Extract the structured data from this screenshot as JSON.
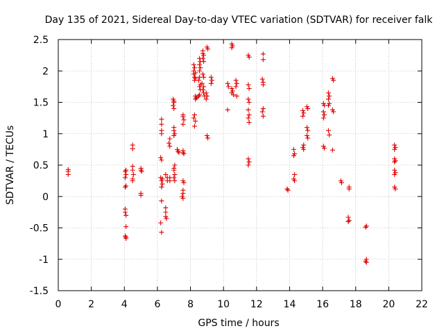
{
  "chart_data": {
    "type": "scatter",
    "title": "Day 135 of 2021, Sidereal Day-to-day VTEC variation (SDTVAR) for receiver falk",
    "xlabel": "GPS time / hours",
    "ylabel": "SDTVAR / TECUs",
    "xlim": [
      0,
      22
    ],
    "ylim": [
      -1.5,
      2.5
    ],
    "xticks": [
      0,
      2,
      4,
      6,
      8,
      10,
      12,
      14,
      16,
      18,
      20,
      22
    ],
    "yticks": [
      -1.5,
      -1,
      -0.5,
      0,
      0.5,
      1,
      1.5,
      2,
      2.5
    ],
    "xtick_labels": [
      "0",
      "2",
      "4",
      "6",
      "8",
      "10",
      "12",
      "14",
      "16",
      "18",
      "20",
      "22"
    ],
    "ytick_labels": [
      "-1.5",
      "-1",
      "-0.5",
      "0",
      "0.5",
      "1",
      "1.5",
      "2",
      "2.5"
    ],
    "grid": true,
    "marker": "plus",
    "color": "#e00000",
    "series": [
      {
        "name": "SDTVAR",
        "points": [
          [
            0.6,
            0.43
          ],
          [
            0.6,
            0.4
          ],
          [
            0.6,
            0.35
          ],
          [
            4.05,
            -0.2
          ],
          [
            4.05,
            -0.25
          ],
          [
            4.1,
            -0.3
          ],
          [
            4.1,
            -0.48
          ],
          [
            4.05,
            -0.63
          ],
          [
            4.1,
            -0.65
          ],
          [
            4.1,
            -0.67
          ],
          [
            4.05,
            0.15
          ],
          [
            4.1,
            0.17
          ],
          [
            4.05,
            0.3
          ],
          [
            4.1,
            0.35
          ],
          [
            4.05,
            0.4
          ],
          [
            4.1,
            0.42
          ],
          [
            4.5,
            0.82
          ],
          [
            4.5,
            0.76
          ],
          [
            4.5,
            0.48
          ],
          [
            4.5,
            0.42
          ],
          [
            4.55,
            0.35
          ],
          [
            4.5,
            0.28
          ],
          [
            4.5,
            0.25
          ],
          [
            5.0,
            0.45
          ],
          [
            5.0,
            0.42
          ],
          [
            5.05,
            0.4
          ],
          [
            5.0,
            0.05
          ],
          [
            5.0,
            0.02
          ],
          [
            6.25,
            1.23
          ],
          [
            6.25,
            1.15
          ],
          [
            6.25,
            1.05
          ],
          [
            6.25,
            1.0
          ],
          [
            6.2,
            0.62
          ],
          [
            6.25,
            0.58
          ],
          [
            6.2,
            0.3
          ],
          [
            6.3,
            0.28
          ],
          [
            6.25,
            0.25
          ],
          [
            6.3,
            0.2
          ],
          [
            6.25,
            0.15
          ],
          [
            6.25,
            -0.07
          ],
          [
            6.2,
            -0.42
          ],
          [
            6.25,
            -0.57
          ],
          [
            6.5,
            -0.18
          ],
          [
            6.5,
            -0.25
          ],
          [
            6.5,
            -0.32
          ],
          [
            6.55,
            -0.35
          ],
          [
            6.5,
            0.35
          ],
          [
            6.6,
            0.3
          ],
          [
            6.6,
            0.25
          ],
          [
            6.75,
            0.3
          ],
          [
            6.75,
            0.25
          ],
          [
            6.75,
            0.92
          ],
          [
            6.7,
            0.85
          ],
          [
            6.75,
            0.8
          ],
          [
            6.95,
            1.55
          ],
          [
            7.0,
            1.52
          ],
          [
            7.0,
            1.5
          ],
          [
            6.95,
            1.45
          ],
          [
            7.0,
            1.4
          ],
          [
            7.0,
            1.1
          ],
          [
            7.0,
            1.05
          ],
          [
            7.05,
            1.0
          ],
          [
            7.0,
            0.97
          ],
          [
            7.05,
            0.5
          ],
          [
            7.0,
            0.45
          ],
          [
            7.0,
            0.42
          ],
          [
            7.05,
            0.35
          ],
          [
            7.0,
            0.3
          ],
          [
            7.05,
            0.25
          ],
          [
            7.2,
            0.75
          ],
          [
            7.25,
            0.72
          ],
          [
            7.3,
            0.7
          ],
          [
            7.55,
            1.3
          ],
          [
            7.55,
            1.27
          ],
          [
            7.6,
            1.22
          ],
          [
            7.55,
            1.15
          ],
          [
            7.55,
            0.73
          ],
          [
            7.55,
            0.7
          ],
          [
            7.6,
            0.68
          ],
          [
            7.55,
            0.25
          ],
          [
            7.6,
            0.22
          ],
          [
            7.55,
            0.1
          ],
          [
            7.55,
            0.05
          ],
          [
            7.5,
            0.0
          ],
          [
            7.55,
            -0.03
          ],
          [
            8.2,
            2.1
          ],
          [
            8.25,
            2.05
          ],
          [
            8.2,
            2.0
          ],
          [
            8.3,
            1.97
          ],
          [
            8.2,
            1.95
          ],
          [
            8.25,
            1.9
          ],
          [
            8.3,
            1.88
          ],
          [
            8.25,
            1.85
          ],
          [
            8.3,
            1.6
          ],
          [
            8.35,
            1.57
          ],
          [
            8.3,
            1.55
          ],
          [
            8.4,
            1.58
          ],
          [
            8.25,
            1.3
          ],
          [
            8.2,
            1.25
          ],
          [
            8.3,
            1.2
          ],
          [
            8.25,
            1.12
          ],
          [
            8.55,
            2.2
          ],
          [
            8.6,
            2.15
          ],
          [
            8.55,
            2.1
          ],
          [
            8.6,
            2.05
          ],
          [
            8.55,
            2.0
          ],
          [
            8.55,
            1.9
          ],
          [
            8.5,
            1.85
          ],
          [
            8.6,
            1.78
          ],
          [
            8.55,
            1.75
          ],
          [
            8.6,
            1.7
          ],
          [
            8.55,
            1.62
          ],
          [
            8.5,
            1.6
          ],
          [
            8.75,
            2.32
          ],
          [
            8.75,
            2.28
          ],
          [
            8.8,
            2.25
          ],
          [
            8.75,
            2.2
          ],
          [
            8.8,
            2.15
          ],
          [
            8.75,
            1.95
          ],
          [
            8.8,
            1.9
          ],
          [
            8.7,
            1.8
          ],
          [
            8.8,
            1.75
          ],
          [
            8.75,
            1.7
          ],
          [
            8.8,
            1.65
          ],
          [
            8.85,
            1.6
          ],
          [
            9.0,
            2.38
          ],
          [
            9.05,
            2.35
          ],
          [
            8.95,
            1.65
          ],
          [
            9.0,
            1.6
          ],
          [
            8.95,
            1.55
          ],
          [
            9.0,
            0.97
          ],
          [
            9.05,
            0.93
          ],
          [
            9.25,
            1.9
          ],
          [
            9.3,
            1.85
          ],
          [
            9.25,
            1.8
          ],
          [
            10.25,
            1.8
          ],
          [
            10.3,
            1.75
          ],
          [
            10.25,
            1.38
          ],
          [
            10.5,
            2.43
          ],
          [
            10.55,
            2.4
          ],
          [
            10.5,
            2.37
          ],
          [
            10.5,
            1.72
          ],
          [
            10.55,
            1.68
          ],
          [
            10.5,
            1.65
          ],
          [
            10.6,
            1.62
          ],
          [
            10.75,
            1.85
          ],
          [
            10.8,
            1.8
          ],
          [
            10.75,
            1.75
          ],
          [
            10.8,
            1.6
          ],
          [
            11.5,
            2.25
          ],
          [
            11.55,
            2.22
          ],
          [
            11.5,
            1.78
          ],
          [
            11.55,
            1.72
          ],
          [
            11.5,
            1.55
          ],
          [
            11.55,
            1.5
          ],
          [
            11.5,
            1.38
          ],
          [
            11.55,
            1.3
          ],
          [
            11.5,
            1.25
          ],
          [
            11.55,
            1.18
          ],
          [
            11.5,
            0.6
          ],
          [
            11.55,
            0.55
          ],
          [
            11.5,
            0.5
          ],
          [
            12.4,
            2.27
          ],
          [
            12.4,
            2.18
          ],
          [
            12.35,
            1.87
          ],
          [
            12.4,
            1.82
          ],
          [
            12.4,
            1.78
          ],
          [
            12.4,
            1.4
          ],
          [
            12.35,
            1.35
          ],
          [
            12.4,
            1.28
          ],
          [
            13.85,
            0.12
          ],
          [
            13.9,
            0.1
          ],
          [
            14.25,
            0.75
          ],
          [
            14.3,
            0.68
          ],
          [
            14.25,
            0.65
          ],
          [
            14.3,
            0.35
          ],
          [
            14.25,
            0.28
          ],
          [
            14.3,
            0.25
          ],
          [
            14.8,
            1.37
          ],
          [
            14.85,
            1.33
          ],
          [
            14.8,
            1.28
          ],
          [
            14.85,
            0.82
          ],
          [
            14.8,
            0.78
          ],
          [
            14.85,
            0.75
          ],
          [
            15.05,
            1.43
          ],
          [
            15.1,
            1.4
          ],
          [
            15.05,
            1.1
          ],
          [
            15.1,
            1.05
          ],
          [
            15.05,
            0.97
          ],
          [
            15.1,
            0.93
          ],
          [
            16.05,
            1.48
          ],
          [
            16.1,
            1.45
          ],
          [
            16.05,
            1.35
          ],
          [
            16.1,
            1.3
          ],
          [
            16.05,
            1.25
          ],
          [
            16.05,
            0.8
          ],
          [
            16.1,
            0.77
          ],
          [
            16.35,
            1.65
          ],
          [
            16.4,
            1.6
          ],
          [
            16.35,
            1.55
          ],
          [
            16.4,
            1.48
          ],
          [
            16.35,
            1.45
          ],
          [
            16.35,
            1.05
          ],
          [
            16.4,
            0.98
          ],
          [
            16.6,
            1.88
          ],
          [
            16.65,
            1.85
          ],
          [
            16.6,
            1.38
          ],
          [
            16.65,
            1.35
          ],
          [
            16.6,
            0.74
          ],
          [
            17.1,
            0.25
          ],
          [
            17.15,
            0.22
          ],
          [
            17.6,
            0.15
          ],
          [
            17.6,
            0.12
          ],
          [
            17.55,
            -0.33
          ],
          [
            17.6,
            -0.38
          ],
          [
            17.55,
            -0.4
          ],
          [
            18.65,
            -0.47
          ],
          [
            18.6,
            -0.49
          ],
          [
            18.65,
            -1.0
          ],
          [
            18.6,
            -1.03
          ],
          [
            18.65,
            -1.05
          ],
          [
            20.35,
            0.82
          ],
          [
            20.4,
            0.78
          ],
          [
            20.35,
            0.75
          ],
          [
            20.35,
            0.6
          ],
          [
            20.4,
            0.57
          ],
          [
            20.35,
            0.55
          ],
          [
            20.35,
            0.42
          ],
          [
            20.4,
            0.38
          ],
          [
            20.35,
            0.35
          ],
          [
            20.35,
            0.15
          ],
          [
            20.4,
            0.12
          ]
        ]
      }
    ]
  }
}
